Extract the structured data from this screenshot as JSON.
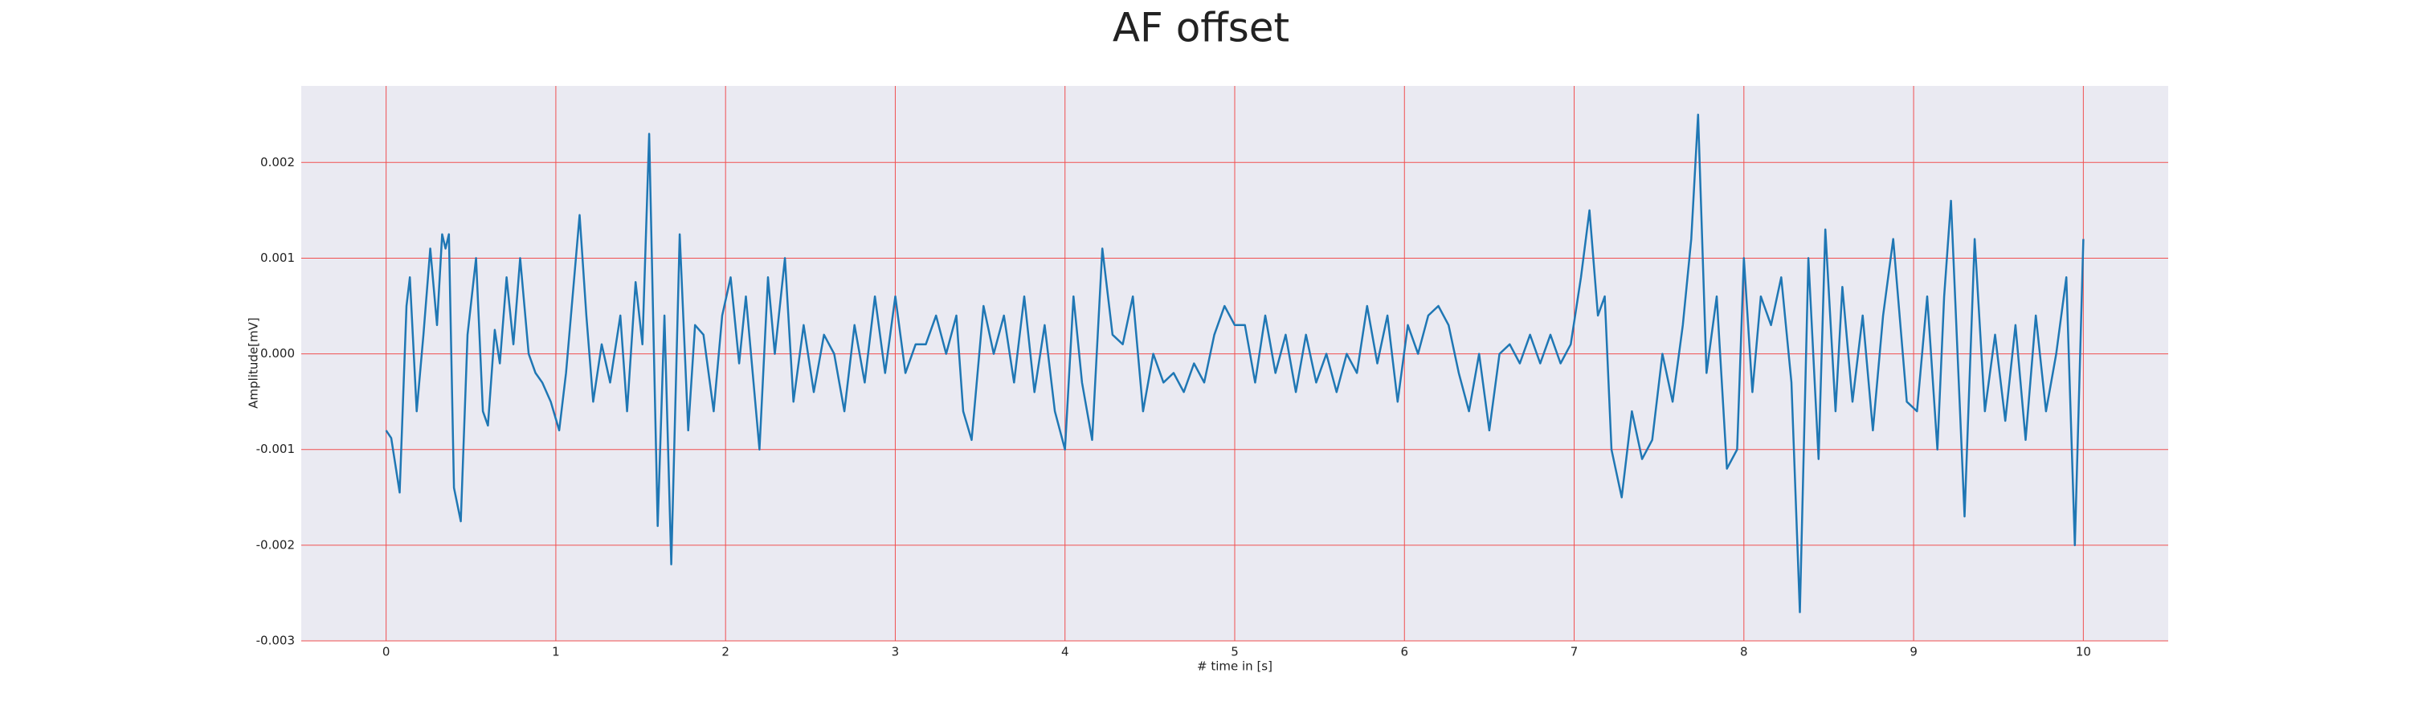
{
  "chart_data": {
    "type": "line",
    "title": "AF offset",
    "xlabel": "# time in [s]",
    "ylabel": "Amplitude[mV]",
    "xlim": [
      -0.5,
      10.5
    ],
    "ylim": [
      -0.003,
      0.0028
    ],
    "xticks": [
      0,
      1,
      2,
      3,
      4,
      5,
      6,
      7,
      8,
      9,
      10
    ],
    "yticks": [
      -0.003,
      -0.002,
      -0.001,
      {
        "value": 0,
        "label": "0.000"
      },
      0.001,
      0.002
    ],
    "grid": true,
    "grid_color": "#f05050",
    "background": "#eaeaf2",
    "series": [
      {
        "color": "#1f77b4",
        "x": [
          0,
          0.03,
          0.08,
          0.12,
          0.14,
          0.18,
          0.22,
          0.26,
          0.3,
          0.33,
          0.35,
          0.37,
          0.4,
          0.44,
          0.48,
          0.53,
          0.57,
          0.6,
          0.64,
          0.67,
          0.71,
          0.75,
          0.79,
          0.84,
          0.88,
          0.92,
          0.97,
          1.02,
          1.06,
          1.14,
          1.18,
          1.22,
          1.27,
          1.32,
          1.38,
          1.42,
          1.47,
          1.51,
          1.55,
          1.6,
          1.64,
          1.68,
          1.73,
          1.78,
          1.82,
          1.87,
          1.93,
          1.98,
          2.03,
          2.08,
          2.12,
          2.2,
          2.25,
          2.29,
          2.35,
          2.4,
          2.46,
          2.52,
          2.58,
          2.64,
          2.7,
          2.76,
          2.82,
          2.88,
          2.94,
          3,
          3.06,
          3.12,
          3.18,
          3.24,
          3.3,
          3.36,
          3.4,
          3.45,
          3.52,
          3.58,
          3.64,
          3.7,
          3.76,
          3.82,
          3.88,
          3.94,
          4,
          4.05,
          4.1,
          4.16,
          4.22,
          4.28,
          4.34,
          4.4,
          4.46,
          4.52,
          4.58,
          4.64,
          4.7,
          4.76,
          4.82,
          4.88,
          4.94,
          5,
          5.06,
          5.12,
          5.18,
          5.24,
          5.3,
          5.36,
          5.42,
          5.48,
          5.54,
          5.6,
          5.66,
          5.72,
          5.78,
          5.84,
          5.9,
          5.96,
          6.02,
          6.08,
          6.14,
          6.2,
          6.26,
          6.32,
          6.38,
          6.44,
          6.5,
          6.56,
          6.62,
          6.68,
          6.74,
          6.8,
          6.86,
          6.92,
          6.98,
          7.04,
          7.09,
          7.14,
          7.18,
          7.22,
          7.28,
          7.34,
          7.4,
          7.46,
          7.52,
          7.58,
          7.64,
          7.69,
          7.73,
          7.78,
          7.84,
          7.9,
          7.96,
          8,
          8.05,
          8.1,
          8.16,
          8.22,
          8.28,
          8.33,
          8.38,
          8.44,
          8.48,
          8.54,
          8.58,
          8.64,
          8.7,
          8.76,
          8.82,
          8.88,
          8.96,
          9.02,
          9.08,
          9.14,
          9.18,
          9.22,
          9.3,
          9.36,
          9.42,
          9.48,
          9.54,
          9.6,
          9.66,
          9.72,
          9.78,
          9.84,
          9.9,
          9.95,
          10
        ],
        "values": [
          -0.0008,
          -0.00088,
          -0.00145,
          0.0005,
          0.0008,
          -0.0006,
          0.0002,
          0.0011,
          0.0003,
          0.00125,
          0.0011,
          0.00125,
          -0.0014,
          -0.00175,
          0.0002,
          0.001,
          -0.0006,
          -0.00075,
          0.00025,
          -0.0001,
          0.0008,
          0.0001,
          0.001,
          0,
          -0.0002,
          -0.0003,
          -0.0005,
          -0.0008,
          -0.0002,
          0.00145,
          0.0004,
          -0.0005,
          0.0001,
          -0.0003,
          0.0004,
          -0.0006,
          0.00075,
          0.0001,
          0.0023,
          -0.0018,
          0.0004,
          -0.0022,
          0.00125,
          -0.0008,
          0.0003,
          0.0002,
          -0.0006,
          0.0004,
          0.0008,
          -0.0001,
          0.0006,
          -0.001,
          0.0008,
          0,
          0.001,
          -0.0005,
          0.0003,
          -0.0004,
          0.0002,
          0,
          -0.0006,
          0.0003,
          -0.0003,
          0.0006,
          -0.0002,
          0.0006,
          -0.0002,
          0.0001,
          0.0001,
          0.0004,
          0,
          0.0004,
          -0.0006,
          -0.0009,
          0.0005,
          0,
          0.0004,
          -0.0003,
          0.0006,
          -0.0004,
          0.0003,
          -0.0006,
          -0.001,
          0.0006,
          -0.0003,
          -0.0009,
          0.0011,
          0.0002,
          0.0001,
          0.0006,
          -0.0006,
          0,
          -0.0003,
          -0.0002,
          -0.0004,
          -0.0001,
          -0.0003,
          0.0002,
          0.0005,
          0.0003,
          0.0003,
          -0.0003,
          0.0004,
          -0.0002,
          0.0002,
          -0.0004,
          0.0002,
          -0.0003,
          0,
          -0.0004,
          0,
          -0.0002,
          0.0005,
          -0.0001,
          0.0004,
          -0.0005,
          0.0003,
          0,
          0.0004,
          0.0005,
          0.0003,
          -0.0002,
          -0.0006,
          0,
          -0.0008,
          0,
          0.0001,
          -0.0001,
          0.0002,
          -0.0001,
          0.0002,
          -0.0001,
          0.0001,
          0.0008,
          0.0015,
          0.0004,
          0.0006,
          -0.001,
          -0.0015,
          -0.0006,
          -0.0011,
          -0.0009,
          0,
          -0.0005,
          0.0003,
          0.0012,
          0.0025,
          -0.0002,
          0.0006,
          -0.0012,
          -0.001,
          0.001,
          -0.0004,
          0.0006,
          0.0003,
          0.0008,
          -0.0003,
          -0.0027,
          0.001,
          -0.0011,
          0.0013,
          -0.0006,
          0.0007,
          -0.0005,
          0.0004,
          -0.0008,
          0.0004,
          0.0012,
          -0.0005,
          -0.0006,
          0.0006,
          -0.001,
          0.0006,
          0.0016,
          -0.0017,
          0.0012,
          -0.0006,
          0.0002,
          -0.0007,
          0.0003,
          -0.0009,
          0.0004,
          -0.0006,
          0,
          0.0008,
          -0.002,
          0.0012
        ]
      }
    ]
  }
}
